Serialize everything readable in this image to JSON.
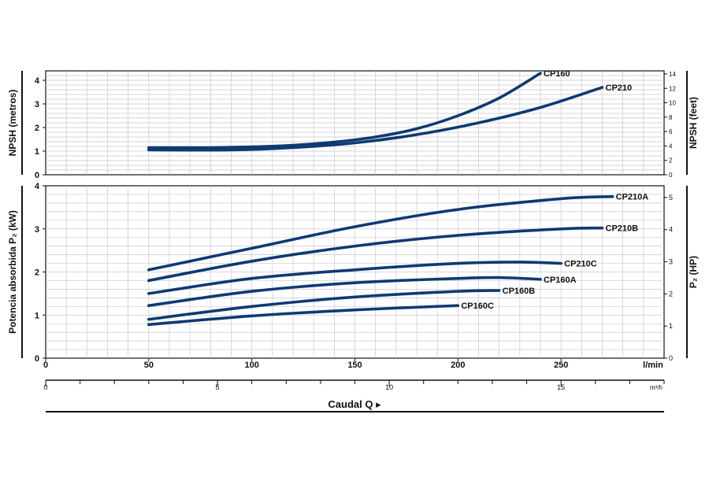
{
  "colors": {
    "curve": "#0e3a73",
    "grid": "#c9c9c9",
    "axis": "#111111"
  },
  "caudal_label": "Caudal Q ▸",
  "chart_data": [
    {
      "id": "npsh",
      "type": "line",
      "ylabel_left": "NPSH (metros)",
      "ylabel_right": "NPSH (feet)",
      "ylim": [
        0,
        4.4
      ],
      "left_ticks": [
        "0",
        "1",
        "2",
        "3",
        "4"
      ],
      "right_ticks": [
        "0",
        "2",
        "4",
        "6",
        "8",
        "10",
        "12",
        "14"
      ],
      "right_tick_values": [
        0,
        0.6096,
        1.2192,
        1.8288,
        2.4384,
        3.048,
        3.6576,
        4.2672
      ],
      "grid": true,
      "series": [
        {
          "name": "CP160",
          "x": [
            50,
            80,
            100,
            120,
            140,
            160,
            180,
            200,
            220,
            240
          ],
          "y": [
            1.15,
            1.15,
            1.18,
            1.25,
            1.38,
            1.6,
            1.95,
            2.5,
            3.25,
            4.3
          ]
        },
        {
          "name": "CP210",
          "x": [
            50,
            90,
            120,
            150,
            180,
            210,
            240,
            270
          ],
          "y": [
            1.05,
            1.05,
            1.15,
            1.35,
            1.7,
            2.2,
            2.85,
            3.7
          ]
        }
      ]
    },
    {
      "id": "power",
      "type": "line",
      "ylabel_left": "Potencia absorbida P₂ (kW)",
      "ylabel_right": "P₂ (HP)",
      "ylim": [
        0,
        4
      ],
      "left_ticks": [
        "0",
        "1",
        "2",
        "3",
        "4"
      ],
      "right_ticks": [
        "0",
        "1",
        "2",
        "3",
        "4",
        "5"
      ],
      "right_tick_values": [
        0,
        0.7457,
        1.4914,
        2.2371,
        2.9828,
        3.7285
      ],
      "grid": true,
      "series": [
        {
          "name": "CP210A",
          "x": [
            50,
            100,
            150,
            200,
            250,
            275
          ],
          "y": [
            2.05,
            2.55,
            3.05,
            3.45,
            3.7,
            3.75
          ]
        },
        {
          "name": "CP210B",
          "x": [
            50,
            100,
            150,
            200,
            250,
            270
          ],
          "y": [
            1.8,
            2.25,
            2.6,
            2.85,
            3.0,
            3.02
          ]
        },
        {
          "name": "CP210C",
          "x": [
            50,
            100,
            150,
            200,
            230,
            250
          ],
          "y": [
            1.5,
            1.85,
            2.05,
            2.2,
            2.23,
            2.2
          ]
        },
        {
          "name": "CP160A",
          "x": [
            50,
            100,
            150,
            200,
            220,
            240
          ],
          "y": [
            1.22,
            1.55,
            1.75,
            1.85,
            1.87,
            1.83
          ]
        },
        {
          "name": "CP160B",
          "x": [
            50,
            100,
            150,
            200,
            220
          ],
          "y": [
            0.9,
            1.2,
            1.42,
            1.55,
            1.57
          ]
        },
        {
          "name": "CP160C",
          "x": [
            50,
            100,
            150,
            200
          ],
          "y": [
            0.78,
            0.98,
            1.12,
            1.22
          ]
        }
      ]
    }
  ],
  "x_axis": {
    "unit": "l/min",
    "ticks": [
      0,
      50,
      100,
      150,
      200,
      250
    ],
    "xlim": [
      0,
      300
    ],
    "secondary_unit": "m³/h",
    "secondary_ticks": [
      0,
      5,
      10,
      15
    ]
  }
}
